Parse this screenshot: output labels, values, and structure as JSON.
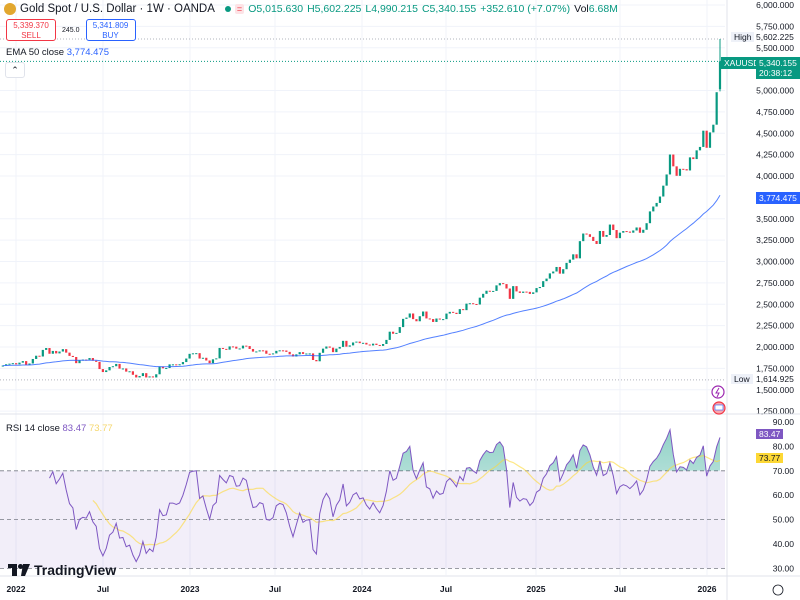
{
  "header": {
    "title": "Gold Spot / U.S. Dollar · 1W · OANDA",
    "open": "O5,015.630",
    "high": "H5,602.225",
    "low": "L4,990.215",
    "close": "C5,340.155",
    "change": "+352.610 (+7.07%)",
    "volume_label": "Vol",
    "volume": "6.68M",
    "status_color": "#089981"
  },
  "trade": {
    "sell_price": "5,339.370",
    "sell_label": "SELL",
    "spread": "245.0",
    "buy_price": "5,341.809",
    "buy_label": "BUY"
  },
  "ema_legend": {
    "label": "EMA 50 close",
    "value": "3,774.475"
  },
  "rsi_legend": {
    "label": "RSI 14 close",
    "rsi_value": "83.47",
    "ma_value": "73.77"
  },
  "price_tags": {
    "high_label": "High",
    "high_value": "5,602.225",
    "symbol": "XAUUSD",
    "last_value": "5,340.155",
    "countdown": "20:38:12",
    "ema_value": "3,774.475",
    "low_label": "Low",
    "low_value": "1,614.925",
    "rsi_value": "83.47",
    "rsi_ma_value": "73.77"
  },
  "watermark": "TradingView",
  "colors": {
    "up": "#089981",
    "down": "#f23645",
    "ema": "#2962ff",
    "rsi": "#7e57c2",
    "rsi_ma": "#fdd835"
  },
  "chart_data": [
    {
      "type": "candlestick",
      "interval": "1W",
      "symbol": "XAUUSD",
      "price_ticks": [
        "6,000.000",
        "5,750.000",
        "5,500.000",
        "5,000.000",
        "4,750.000",
        "4,500.000",
        "4,250.000",
        "4,000.000",
        "3,500.000",
        "3,250.000",
        "3,000.000",
        "2,750.000",
        "2,500.000",
        "2,250.000",
        "2,000.000",
        "1,750.000",
        "1,500.000",
        "1,250.000"
      ],
      "ylim": [
        1250,
        6000
      ],
      "x_ticks": [
        "2022",
        "Jul",
        "2023",
        "Jul",
        "2024",
        "Jul",
        "2025",
        "Jul",
        "2026"
      ],
      "closes": [
        1783,
        1798,
        1805,
        1811,
        1797,
        1817,
        1835,
        1791,
        1807,
        1860,
        1898,
        1889,
        1966,
        1988,
        1921,
        1954,
        1925,
        1947,
        1975,
        1934,
        1896,
        1883,
        1811,
        1846,
        1853,
        1850,
        1871,
        1840,
        1826,
        1742,
        1707,
        1727,
        1766,
        1775,
        1802,
        1747,
        1749,
        1712,
        1716,
        1675,
        1644,
        1660,
        1694,
        1644,
        1656,
        1644,
        1681,
        1771,
        1751,
        1754,
        1797,
        1797,
        1793,
        1798,
        1824,
        1865,
        1920,
        1926,
        1928,
        1865,
        1874,
        1842,
        1811,
        1856,
        1867,
        1989,
        1978,
        1969,
        2007,
        2004,
        1981,
        1983,
        2016,
        2011,
        1977,
        1946,
        1948,
        1961,
        1958,
        1921,
        1919,
        1925,
        1955,
        1961,
        1959,
        1943,
        1914,
        1889,
        1914,
        1940,
        1919,
        1924,
        1925,
        1848,
        1833,
        1932,
        1981,
        2006,
        1992,
        1940,
        1981,
        2001,
        2072,
        2004,
        2019,
        2053,
        2063,
        2045,
        2049,
        2029,
        2018,
        2039,
        2024,
        2013,
        2035,
        2083,
        2179,
        2155,
        2165,
        2233,
        2329,
        2344,
        2392,
        2326,
        2301,
        2360,
        2415,
        2334,
        2327,
        2293,
        2333,
        2321,
        2326,
        2391,
        2411,
        2400,
        2386,
        2443,
        2431,
        2507,
        2512,
        2503,
        2497,
        2577,
        2622,
        2658,
        2653,
        2656,
        2721,
        2747,
        2736,
        2684,
        2563,
        2712,
        2650,
        2633,
        2648,
        2645,
        2621,
        2639,
        2689,
        2702,
        2770,
        2800,
        2861,
        2883,
        2936,
        2858,
        2910,
        2984,
        3022,
        3084,
        3037,
        3238,
        3327,
        3319,
        3288,
        3240,
        3205,
        3357,
        3289,
        3310,
        3432,
        3368,
        3273,
        3337,
        3356,
        3350,
        3337,
        3363,
        3398,
        3336,
        3371,
        3448,
        3586,
        3643,
        3685,
        3760,
        3887,
        4018,
        4251,
        4113,
        4002,
        4084,
        4080,
        4065,
        4218,
        4198,
        4300,
        4340,
        4530,
        4330,
        4510,
        4600,
        4980,
        5340.155
      ],
      "last_candle": {
        "open": 5015.63,
        "high": 5602.225,
        "low": 4990.215,
        "close": 5340.155
      },
      "overlay": {
        "name": "EMA 50 close",
        "length": 50
      }
    },
    {
      "type": "line",
      "name": "RSI 14 close",
      "length": 14,
      "ma_length": 14,
      "y_ticks": [
        "90.00",
        "80.00",
        "70.00",
        "60.00",
        "50.00",
        "40.00",
        "30.00"
      ],
      "ylim": [
        28,
        92
      ],
      "bands": [
        70,
        50,
        30
      ]
    }
  ]
}
